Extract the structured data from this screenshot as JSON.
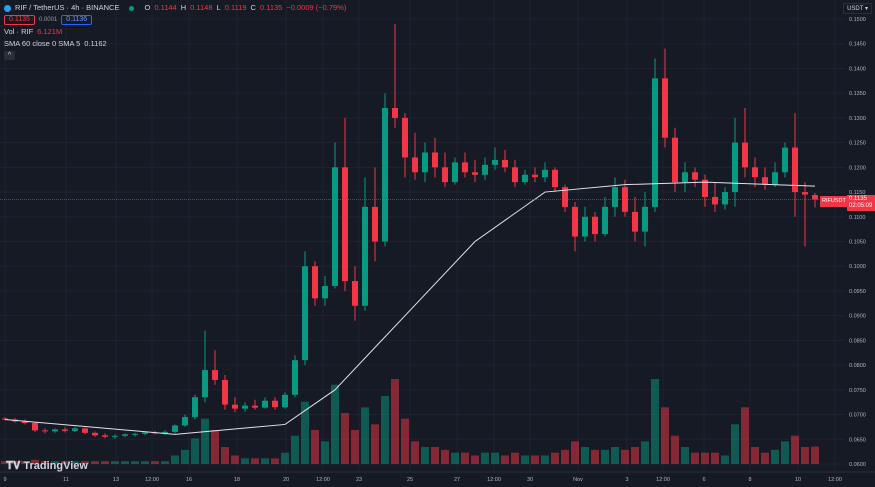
{
  "header": {
    "symbol": "RIF / TetherUS · 4h · BINANCE",
    "o_label": "O",
    "o": "0.1144",
    "h_label": "H",
    "h": "0.1148",
    "l_label": "L",
    "l": "0.1119",
    "c_label": "C",
    "c": "0.1135",
    "change": "−0.0009 (−0.79%)",
    "bid": "0.1135",
    "spread": "0.0001",
    "ask": "0.1136",
    "vol_label": "Vol · RIF",
    "vol": "6.121M",
    "sma_label": "SMA 60 close 0 SMA 5",
    "sma": "0.1162",
    "collapse": "^"
  },
  "currency": "USDT ▾",
  "brand": "TradingView",
  "last_price": {
    "symbol": "RIFUSDT",
    "price": "0.1135",
    "countdown": "02:05:09"
  },
  "colors": {
    "up": "#089981",
    "down": "#f23645",
    "sma": "#e0e3eb",
    "background": "#161a25",
    "grid": "#1f2330"
  },
  "chart_data": {
    "type": "candlestick",
    "interval": "4h",
    "price_ticks": [
      "0.1500",
      "0.1450",
      "0.1400",
      "0.1350",
      "0.1300",
      "0.1250",
      "0.1200",
      "0.1150",
      "0.1100",
      "0.1050",
      "0.1000",
      "0.0950",
      "0.0900",
      "0.0850",
      "0.0800",
      "0.0750",
      "0.0700",
      "0.0650",
      "0.0600"
    ],
    "ylim": [
      0.06,
      0.15
    ],
    "time_ticks": [
      "9",
      "11",
      "13",
      "12:00",
      "16",
      "18",
      "20",
      "12:00",
      "23",
      "25",
      "27",
      "12:00",
      "30",
      "Nov",
      "3",
      "12:00",
      "6",
      "8",
      "10",
      "12:00"
    ],
    "volume_unit": "M",
    "candles": [
      [
        0.0692,
        0.0695,
        0.0688,
        0.069,
        1
      ],
      [
        0.069,
        0.0693,
        0.0684,
        0.0686,
        1
      ],
      [
        0.0686,
        0.069,
        0.068,
        0.0683,
        1
      ],
      [
        0.0683,
        0.0685,
        0.0665,
        0.0668,
        1.5
      ],
      [
        0.0668,
        0.0672,
        0.0662,
        0.0666,
        1
      ],
      [
        0.0666,
        0.0672,
        0.0663,
        0.067,
        1
      ],
      [
        0.067,
        0.0674,
        0.0664,
        0.0667,
        1
      ],
      [
        0.0667,
        0.0675,
        0.0665,
        0.0672,
        1
      ],
      [
        0.0672,
        0.0674,
        0.066,
        0.0663,
        1
      ],
      [
        0.0663,
        0.0666,
        0.0655,
        0.0658,
        1
      ],
      [
        0.0658,
        0.0662,
        0.0652,
        0.0655,
        1
      ],
      [
        0.0655,
        0.066,
        0.0651,
        0.0657,
        1
      ],
      [
        0.0657,
        0.0662,
        0.0654,
        0.066,
        1
      ],
      [
        0.066,
        0.0663,
        0.0655,
        0.0661,
        1
      ],
      [
        0.0661,
        0.0666,
        0.0658,
        0.0664,
        1
      ],
      [
        0.0664,
        0.0667,
        0.066,
        0.0662,
        1
      ],
      [
        0.0662,
        0.0668,
        0.0659,
        0.0665,
        1
      ],
      [
        0.0665,
        0.068,
        0.0662,
        0.0678,
        3
      ],
      [
        0.0678,
        0.07,
        0.0675,
        0.0695,
        5
      ],
      [
        0.0695,
        0.074,
        0.069,
        0.0735,
        9
      ],
      [
        0.0735,
        0.087,
        0.0725,
        0.079,
        16
      ],
      [
        0.079,
        0.083,
        0.076,
        0.077,
        12
      ],
      [
        0.077,
        0.078,
        0.071,
        0.072,
        6
      ],
      [
        0.072,
        0.0735,
        0.0705,
        0.0712,
        3
      ],
      [
        0.0712,
        0.0725,
        0.0706,
        0.0718,
        2
      ],
      [
        0.0718,
        0.073,
        0.071,
        0.0714,
        2
      ],
      [
        0.0714,
        0.0735,
        0.0712,
        0.0728,
        2
      ],
      [
        0.0728,
        0.0735,
        0.071,
        0.0715,
        2
      ],
      [
        0.0715,
        0.0745,
        0.0712,
        0.074,
        4
      ],
      [
        0.074,
        0.082,
        0.0735,
        0.081,
        10
      ],
      [
        0.081,
        0.103,
        0.08,
        0.1,
        22
      ],
      [
        0.1,
        0.101,
        0.092,
        0.0935,
        12
      ],
      [
        0.0935,
        0.098,
        0.092,
        0.096,
        8
      ],
      [
        0.096,
        0.125,
        0.0955,
        0.12,
        28
      ],
      [
        0.12,
        0.13,
        0.095,
        0.097,
        18
      ],
      [
        0.097,
        0.1,
        0.089,
        0.092,
        12
      ],
      [
        0.092,
        0.118,
        0.091,
        0.112,
        20
      ],
      [
        0.112,
        0.12,
        0.101,
        0.105,
        14
      ],
      [
        0.105,
        0.135,
        0.104,
        0.132,
        24
      ],
      [
        0.132,
        0.149,
        0.128,
        0.13,
        30
      ],
      [
        0.13,
        0.131,
        0.118,
        0.122,
        16
      ],
      [
        0.122,
        0.127,
        0.1175,
        0.119,
        8
      ],
      [
        0.119,
        0.125,
        0.117,
        0.123,
        6
      ],
      [
        0.123,
        0.126,
        0.118,
        0.12,
        6
      ],
      [
        0.12,
        0.123,
        0.116,
        0.117,
        5
      ],
      [
        0.117,
        0.122,
        0.1165,
        0.121,
        4
      ],
      [
        0.121,
        0.123,
        0.118,
        0.119,
        4
      ],
      [
        0.119,
        0.1215,
        0.117,
        0.1185,
        3
      ],
      [
        0.1185,
        0.122,
        0.1175,
        0.1205,
        4
      ],
      [
        0.1205,
        0.124,
        0.1195,
        0.1215,
        4
      ],
      [
        0.1215,
        0.1235,
        0.119,
        0.12,
        3
      ],
      [
        0.12,
        0.1215,
        0.116,
        0.117,
        4
      ],
      [
        0.117,
        0.1195,
        0.1165,
        0.1185,
        3
      ],
      [
        0.1185,
        0.12,
        0.117,
        0.118,
        3
      ],
      [
        0.118,
        0.121,
        0.117,
        0.1195,
        3
      ],
      [
        0.1195,
        0.12,
        0.115,
        0.116,
        4
      ],
      [
        0.116,
        0.1165,
        0.111,
        0.112,
        5
      ],
      [
        0.112,
        0.113,
        0.103,
        0.106,
        8
      ],
      [
        0.106,
        0.112,
        0.105,
        0.11,
        6
      ],
      [
        0.11,
        0.111,
        0.105,
        0.1065,
        5
      ],
      [
        0.1065,
        0.114,
        0.106,
        0.112,
        5
      ],
      [
        0.112,
        0.118,
        0.11,
        0.116,
        6
      ],
      [
        0.116,
        0.1175,
        0.11,
        0.111,
        5
      ],
      [
        0.111,
        0.114,
        0.105,
        0.107,
        6
      ],
      [
        0.107,
        0.115,
        0.104,
        0.112,
        8
      ],
      [
        0.112,
        0.142,
        0.111,
        0.138,
        30
      ],
      [
        0.138,
        0.144,
        0.124,
        0.126,
        20
      ],
      [
        0.126,
        0.128,
        0.115,
        0.117,
        10
      ],
      [
        0.117,
        0.121,
        0.115,
        0.119,
        6
      ],
      [
        0.119,
        0.12,
        0.116,
        0.1175,
        4
      ],
      [
        0.1175,
        0.1185,
        0.112,
        0.114,
        4
      ],
      [
        0.114,
        0.117,
        0.111,
        0.1125,
        4
      ],
      [
        0.1125,
        0.116,
        0.1115,
        0.115,
        3
      ],
      [
        0.115,
        0.13,
        0.112,
        0.125,
        14
      ],
      [
        0.125,
        0.132,
        0.118,
        0.12,
        20
      ],
      [
        0.12,
        0.122,
        0.116,
        0.118,
        6
      ],
      [
        0.118,
        0.12,
        0.1155,
        0.1165,
        4
      ],
      [
        0.1165,
        0.121,
        0.116,
        0.119,
        5
      ],
      [
        0.119,
        0.125,
        0.118,
        0.124,
        8
      ],
      [
        0.124,
        0.131,
        0.11,
        0.115,
        10
      ],
      [
        0.115,
        0.117,
        0.104,
        0.1145,
        6
      ],
      [
        0.1144,
        0.1148,
        0.1119,
        0.1135,
        6.121
      ]
    ],
    "sma_period": 60,
    "sma_points": [
      [
        0,
        0.069
      ],
      [
        17,
        0.066
      ],
      [
        28,
        0.068
      ],
      [
        33,
        0.075
      ],
      [
        40,
        0.09
      ],
      [
        47,
        0.105
      ],
      [
        54,
        0.115
      ],
      [
        62,
        0.1165
      ],
      [
        70,
        0.117
      ],
      [
        81,
        0.1162
      ]
    ],
    "current_price": 0.1135
  }
}
